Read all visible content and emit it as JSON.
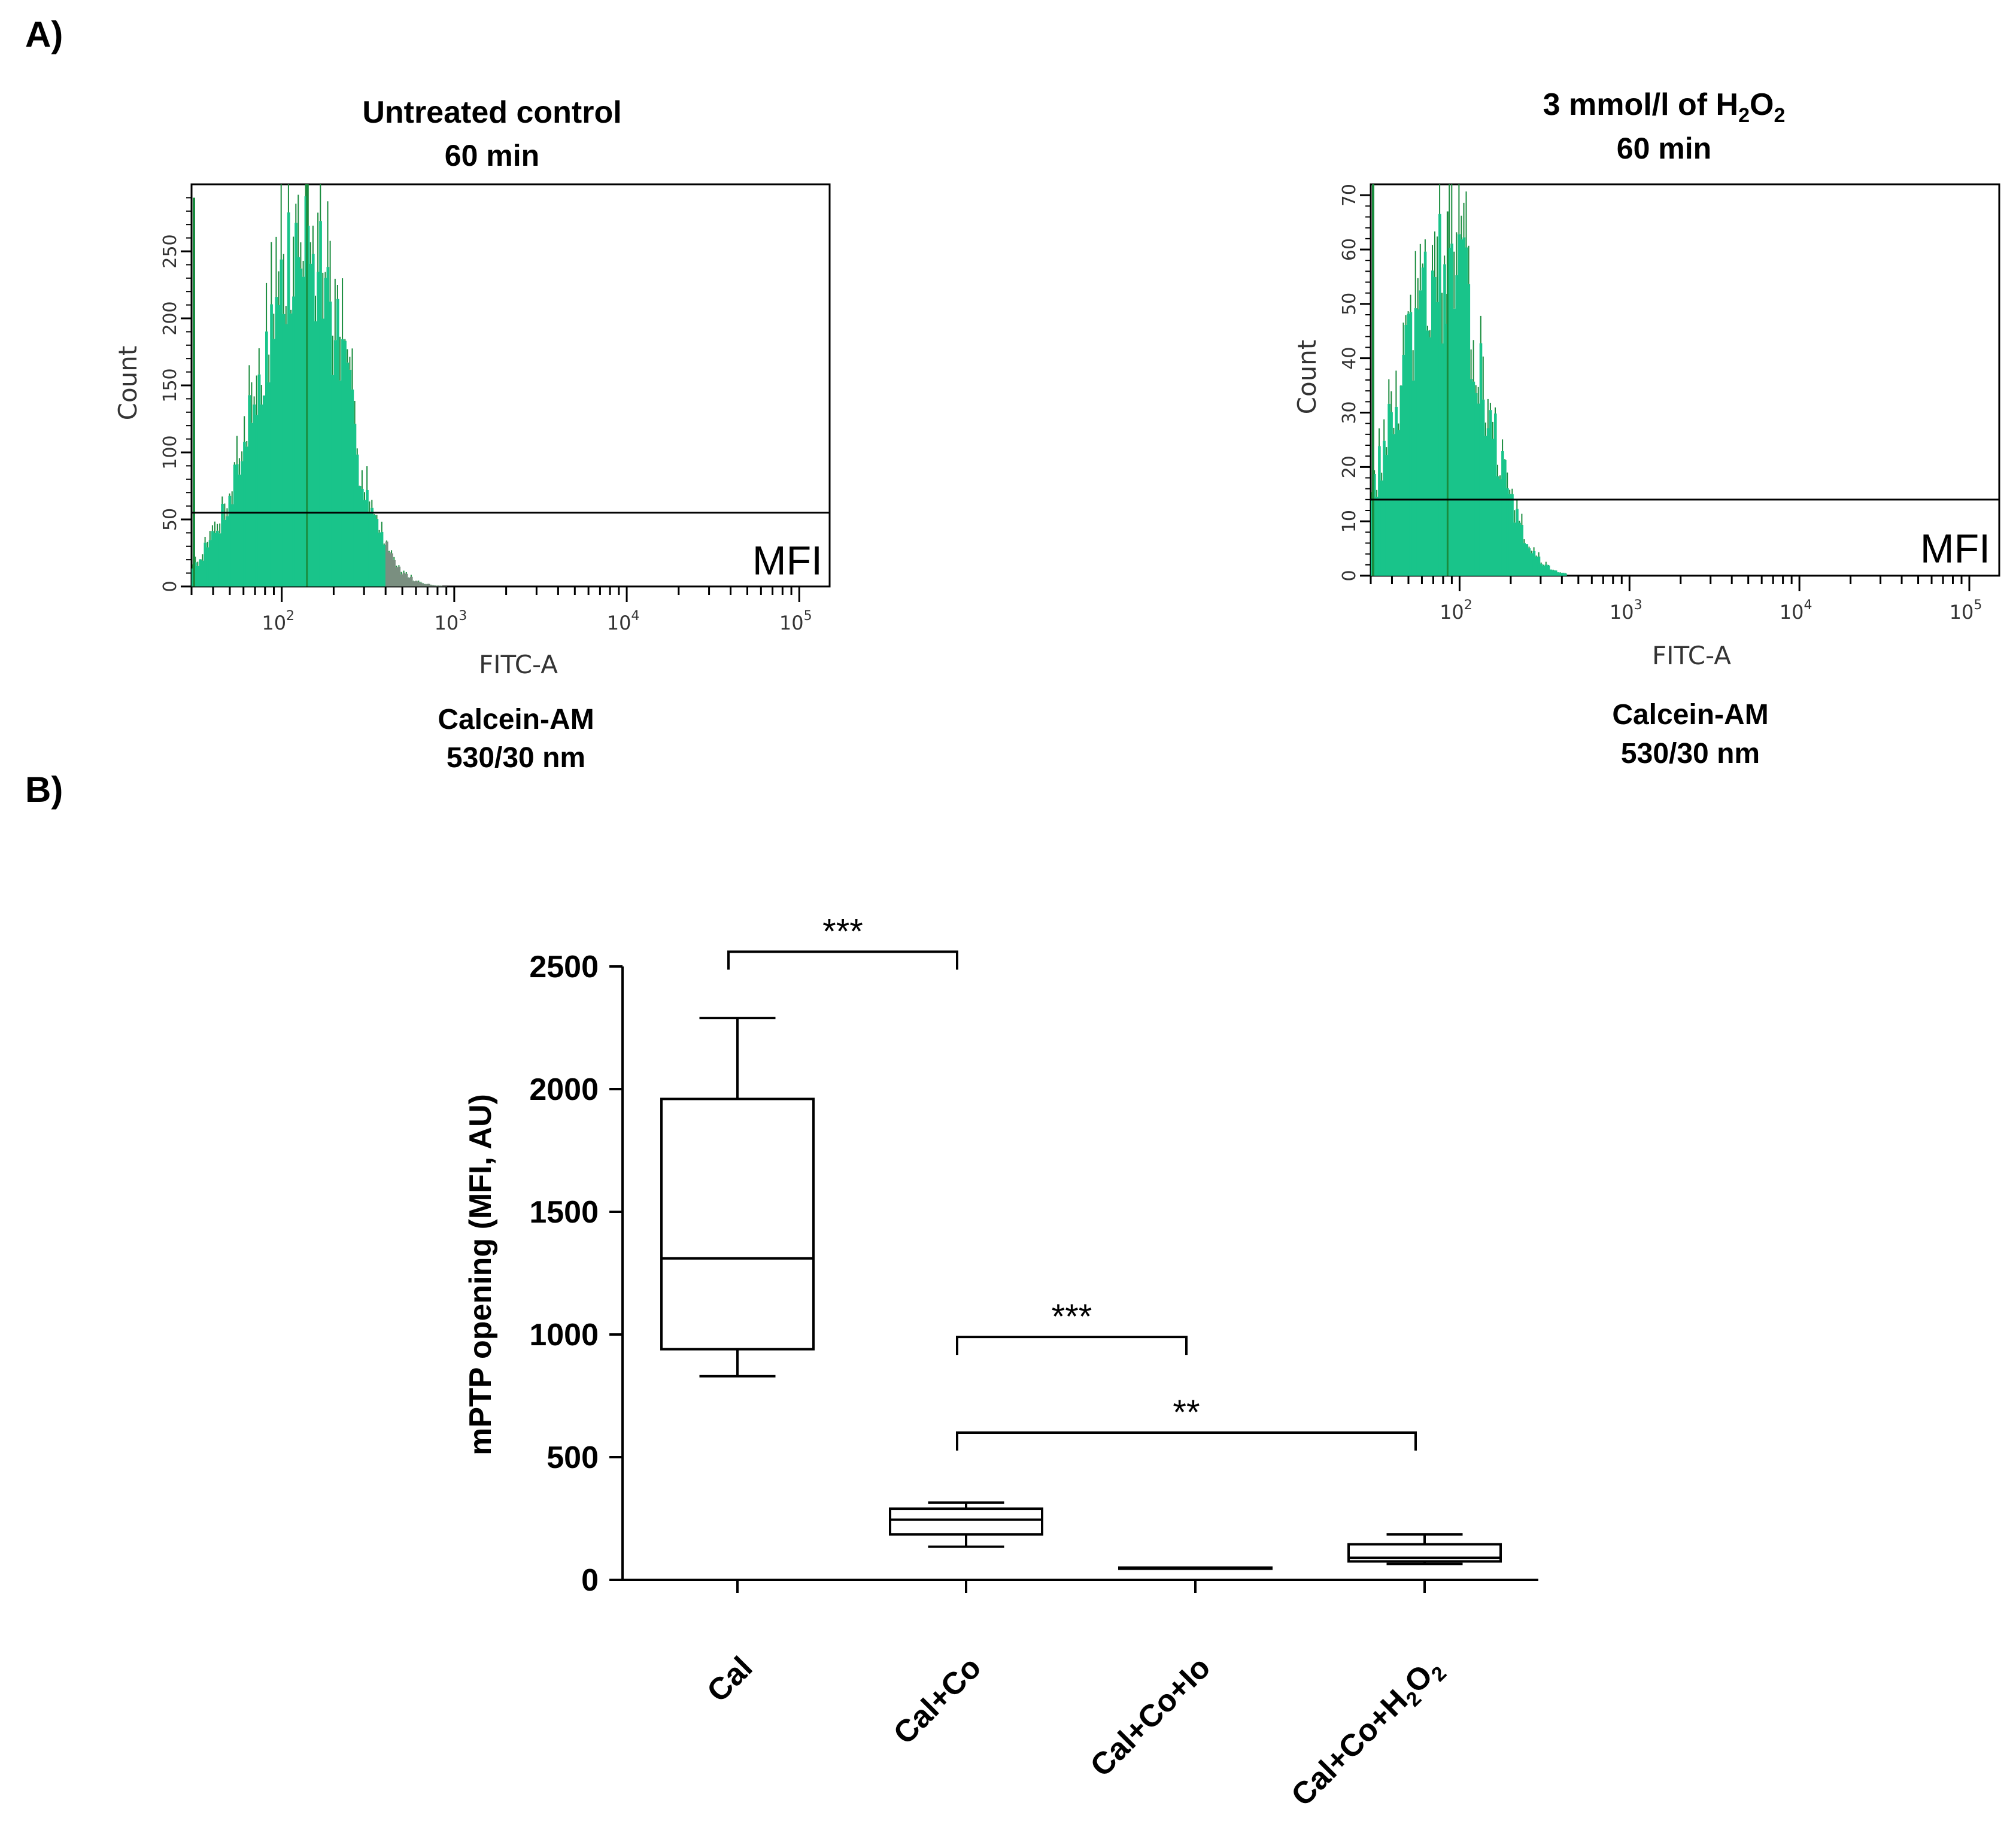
{
  "panel_a_label": "A)",
  "panel_b_label": "B)",
  "chart_data": [
    {
      "type": "histogram",
      "title": "Untreated control",
      "subtitle": "60 min",
      "xlabel": "FITC-A",
      "ylabel": "Count",
      "caption_line1": "Calcein-AM",
      "caption_line2": "530/30 nm",
      "gate_label": "MFI",
      "gate_level": 55,
      "x_scale": "log",
      "xlim": [
        30,
        150000
      ],
      "ylim": [
        0,
        300
      ],
      "y_ticks": [
        0,
        50,
        100,
        150,
        200,
        250
      ],
      "x_ticks": [
        {
          "base": "10",
          "exp": "2",
          "value": 100
        },
        {
          "base": "10",
          "exp": "3",
          "value": 1000
        },
        {
          "base": "10",
          "exp": "4",
          "value": 10000
        },
        {
          "base": "10",
          "exp": "5",
          "value": 100000
        }
      ],
      "peak_x": 140,
      "peak_count": 300,
      "baseline_spike_count": 290,
      "main_color": "#19c48a",
      "line_color": "#1a8c3e",
      "tail_color": "#7a8f80",
      "tail_start_x": 400
    },
    {
      "type": "histogram",
      "title": "3 mmol/l of H",
      "title_sub1": "2",
      "title_mid": "O",
      "title_sub2": "2",
      "subtitle": "60 min",
      "xlabel": "FITC-A",
      "ylabel": "Count",
      "caption_line1": "Calcein-AM",
      "caption_line2": "530/30 nm",
      "gate_label": "MFI",
      "gate_level": 14,
      "x_scale": "log",
      "xlim": [
        30,
        150000
      ],
      "ylim": [
        0,
        72
      ],
      "y_ticks": [
        0,
        10,
        20,
        30,
        40,
        50,
        60,
        70
      ],
      "x_ticks": [
        {
          "base": "10",
          "exp": "2",
          "value": 100
        },
        {
          "base": "10",
          "exp": "3",
          "value": 1000
        },
        {
          "base": "10",
          "exp": "4",
          "value": 10000
        },
        {
          "base": "10",
          "exp": "5",
          "value": 100000
        }
      ],
      "peak_x": 85,
      "peak_count": 67,
      "baseline_spike_count": 72,
      "main_color": "#19c48a",
      "line_color": "#1a8c3e",
      "tail_color": "#19c48a",
      "tail_start_x": 100000
    },
    {
      "type": "box",
      "ylabel": "mPTP opening  (MFI, AU)",
      "ylim": [
        0,
        2500
      ],
      "y_ticks": [
        "0",
        "500",
        "1000",
        "1500",
        "2000",
        "2500"
      ],
      "categories": [
        {
          "label": "Cal"
        },
        {
          "label": "Cal+Co"
        },
        {
          "label": "Cal+Co+Io"
        },
        {
          "label": "Cal+Co+H",
          "sub1": "2",
          "mid": "O",
          "sub2": "2"
        }
      ],
      "boxes": [
        {
          "min": 830,
          "q1": 940,
          "median": 1310,
          "q3": 1960,
          "max": 2290
        },
        {
          "min": 135,
          "q1": 185,
          "median": 245,
          "q3": 290,
          "max": 315
        },
        {
          "min": 50,
          "q1": 50,
          "median": 50,
          "q3": 50,
          "max": 50
        },
        {
          "min": 65,
          "q1": 75,
          "median": 90,
          "q3": 145,
          "max": 185
        }
      ],
      "significance": [
        {
          "from": 0,
          "to": 1,
          "label": "***",
          "level": 2560
        },
        {
          "from": 1,
          "to": 2,
          "label": "***",
          "level": 990
        },
        {
          "from": 1,
          "to": 3,
          "label": "**",
          "level": 600
        }
      ]
    }
  ]
}
